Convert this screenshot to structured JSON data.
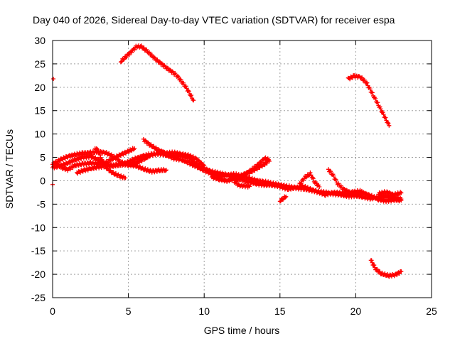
{
  "chart_data": {
    "type": "scatter",
    "title": "Day 040 of 2026, Sidereal Day-to-day VTEC variation (SDTVAR) for receiver espa",
    "xlabel": "GPS time / hours",
    "ylabel": "SDTVAR / TECUs",
    "xlim": [
      0,
      25
    ],
    "ylim": [
      -25,
      30
    ],
    "xticks": [
      0,
      5,
      10,
      15,
      20,
      25
    ],
    "yticks": [
      -25,
      -20,
      -15,
      -10,
      -5,
      0,
      5,
      10,
      15,
      20,
      25,
      30
    ],
    "grid": true,
    "marker": "+",
    "color": "#ff0000",
    "series": [
      {
        "name": "arc-high-1",
        "points": [
          [
            4.5,
            25.5
          ],
          [
            5.0,
            27.0
          ],
          [
            5.5,
            28.6
          ],
          [
            5.8,
            28.8
          ],
          [
            6.2,
            27.8
          ],
          [
            6.8,
            26.0
          ],
          [
            7.5,
            24.2
          ],
          [
            8.2,
            22.5
          ],
          [
            8.8,
            20.0
          ],
          [
            9.3,
            17.2
          ]
        ]
      },
      {
        "name": "arc-high-2",
        "points": [
          [
            19.5,
            21.8
          ],
          [
            19.9,
            22.4
          ],
          [
            20.3,
            22.2
          ],
          [
            20.7,
            21.0
          ],
          [
            21.2,
            18.0
          ],
          [
            21.7,
            15.0
          ],
          [
            22.2,
            11.8
          ]
        ]
      },
      {
        "name": "arc-low",
        "points": [
          [
            21.0,
            -17.0
          ],
          [
            21.3,
            -18.8
          ],
          [
            21.7,
            -19.9
          ],
          [
            22.2,
            -20.3
          ],
          [
            22.6,
            -20.1
          ],
          [
            23.0,
            -19.4
          ]
        ]
      },
      {
        "name": "arc-start",
        "points": [
          [
            0.05,
            21.8
          ],
          [
            0.0,
            -0.8
          ]
        ]
      },
      {
        "name": "track-a",
        "points": [
          [
            0.0,
            3.5
          ],
          [
            0.5,
            4.5
          ],
          [
            1.0,
            5.2
          ],
          [
            1.5,
            5.6
          ],
          [
            2.0,
            5.9
          ],
          [
            2.5,
            6.0
          ],
          [
            3.0,
            6.2
          ],
          [
            3.5,
            6.0
          ],
          [
            4.0,
            5.2
          ],
          [
            4.5,
            4.0
          ],
          [
            5.0,
            3.5
          ],
          [
            5.5,
            3.8
          ],
          [
            6.0,
            4.6
          ],
          [
            6.5,
            5.5
          ],
          [
            7.0,
            5.9
          ],
          [
            7.5,
            5.5
          ],
          [
            8.0,
            4.8
          ],
          [
            8.5,
            4.5
          ],
          [
            9.0,
            3.8
          ],
          [
            9.5,
            3.0
          ],
          [
            10.0,
            2.2
          ],
          [
            10.5,
            1.5
          ],
          [
            11.0,
            1.0
          ],
          [
            11.5,
            1.2
          ],
          [
            12.0,
            1.4
          ],
          [
            12.5,
            1.0
          ],
          [
            13.0,
            0.5
          ],
          [
            13.5,
            0.0
          ],
          [
            14.0,
            -0.2
          ],
          [
            14.5,
            -0.6
          ],
          [
            15.0,
            -0.9
          ],
          [
            15.5,
            -1.2
          ],
          [
            16.0,
            -1.5
          ],
          [
            16.5,
            -1.7
          ],
          [
            17.0,
            -2.0
          ],
          [
            17.5,
            -2.3
          ],
          [
            18.0,
            -2.5
          ],
          [
            18.5,
            -2.8
          ],
          [
            19.0,
            -3.0
          ],
          [
            19.5,
            -3.3
          ],
          [
            20.0,
            -3.2
          ],
          [
            20.5,
            -3.5
          ],
          [
            21.0,
            -3.8
          ],
          [
            21.5,
            -3.5
          ],
          [
            22.0,
            -3.3
          ],
          [
            22.5,
            -3.6
          ],
          [
            23.0,
            -3.9
          ]
        ]
      },
      {
        "name": "track-b",
        "points": [
          [
            0.0,
            2.8
          ],
          [
            0.5,
            3.2
          ],
          [
            1.0,
            3.8
          ],
          [
            1.5,
            4.5
          ],
          [
            2.0,
            5.0
          ],
          [
            2.5,
            5.2
          ],
          [
            3.0,
            4.5
          ],
          [
            3.5,
            3.5
          ],
          [
            4.0,
            3.2
          ],
          [
            4.5,
            3.5
          ],
          [
            5.0,
            4.0
          ],
          [
            5.5,
            4.8
          ],
          [
            6.0,
            5.3
          ],
          [
            6.5,
            5.7
          ],
          [
            7.0,
            5.8
          ],
          [
            7.5,
            5.6
          ],
          [
            8.0,
            5.2
          ],
          [
            8.5,
            5.5
          ],
          [
            9.0,
            4.8
          ],
          [
            9.5,
            3.6
          ],
          [
            10.0,
            2.6
          ],
          [
            10.5,
            2.0
          ],
          [
            11.0,
            1.6
          ],
          [
            11.5,
            1.3
          ],
          [
            12.0,
            0.8
          ],
          [
            12.5,
            0.2
          ],
          [
            13.0,
            -0.3
          ],
          [
            13.5,
            -0.7
          ],
          [
            14.0,
            -0.9
          ],
          [
            14.5,
            -0.9
          ],
          [
            15.0,
            -1.2
          ],
          [
            15.5,
            -1.8
          ],
          [
            16.0,
            -1.5
          ],
          [
            16.5,
            -1.2
          ],
          [
            17.0,
            -1.8
          ],
          [
            17.5,
            -2.4
          ],
          [
            18.0,
            -3.0
          ],
          [
            18.5,
            -2.5
          ],
          [
            19.0,
            -2.6
          ],
          [
            19.5,
            -2.8
          ],
          [
            20.0,
            -3.0
          ],
          [
            20.5,
            -2.6
          ],
          [
            21.0,
            -3.2
          ],
          [
            21.5,
            -4.0
          ],
          [
            22.0,
            -4.3
          ],
          [
            22.5,
            -4.1
          ],
          [
            23.0,
            -4.2
          ]
        ]
      },
      {
        "name": "track-c",
        "points": [
          [
            0.2,
            3.8
          ],
          [
            0.6,
            2.8
          ],
          [
            1.0,
            2.4
          ],
          [
            1.5,
            3.3
          ],
          [
            2.0,
            3.6
          ],
          [
            2.5,
            3.8
          ],
          [
            3.0,
            3.6
          ],
          [
            3.5,
            3.9
          ],
          [
            4.0,
            4.8
          ],
          [
            4.5,
            5.6
          ],
          [
            5.0,
            6.3
          ],
          [
            5.4,
            6.9
          ]
        ]
      },
      {
        "name": "track-d",
        "points": [
          [
            1.6,
            1.7
          ],
          [
            2.0,
            2.2
          ],
          [
            2.5,
            2.6
          ],
          [
            3.0,
            2.9
          ],
          [
            3.5,
            3.2
          ],
          [
            4.0,
            3.3
          ],
          [
            4.5,
            3.5
          ],
          [
            5.0,
            3.4
          ],
          [
            5.5,
            3.2
          ],
          [
            6.0,
            2.5
          ],
          [
            6.5,
            2.0
          ],
          [
            7.0,
            2.2
          ],
          [
            7.5,
            2.3
          ]
        ]
      },
      {
        "name": "track-e",
        "points": [
          [
            2.8,
            7.0
          ],
          [
            3.0,
            6.5
          ],
          [
            3.3,
            4.0
          ],
          [
            3.6,
            2.6
          ],
          [
            4.0,
            1.6
          ],
          [
            4.4,
            1.0
          ],
          [
            4.8,
            0.6
          ]
        ]
      },
      {
        "name": "track-f",
        "points": [
          [
            6.0,
            8.8
          ],
          [
            6.5,
            7.5
          ],
          [
            7.0,
            6.5
          ],
          [
            7.5,
            5.9
          ],
          [
            8.0,
            6.0
          ],
          [
            8.5,
            5.7
          ],
          [
            9.0,
            5.4
          ],
          [
            9.5,
            4.6
          ],
          [
            10.0,
            3.2
          ]
        ]
      },
      {
        "name": "track-g",
        "points": [
          [
            10.5,
            0.8
          ],
          [
            11.0,
            0.3
          ],
          [
            11.5,
            0.0
          ],
          [
            12.0,
            0.4
          ],
          [
            12.5,
            1.2
          ],
          [
            13.0,
            2.0
          ],
          [
            13.5,
            3.3
          ],
          [
            14.0,
            4.8
          ],
          [
            14.3,
            4.4
          ],
          [
            14.0,
            3.6
          ],
          [
            13.5,
            2.7
          ],
          [
            13.0,
            1.8
          ],
          [
            12.5,
            0.8
          ],
          [
            12.0,
            -0.2
          ],
          [
            12.3,
            -1.0
          ],
          [
            13.0,
            -1.2
          ]
        ]
      },
      {
        "name": "track-h",
        "points": [
          [
            16.3,
            -0.8
          ],
          [
            16.6,
            0.6
          ],
          [
            17.0,
            1.5
          ],
          [
            17.3,
            -0.3
          ],
          [
            17.6,
            -1.3
          ]
        ]
      },
      {
        "name": "track-i",
        "points": [
          [
            18.2,
            2.4
          ],
          [
            18.5,
            1.2
          ],
          [
            18.8,
            -0.6
          ],
          [
            19.2,
            -1.8
          ],
          [
            19.6,
            -2.5
          ],
          [
            20.0,
            -2.3
          ],
          [
            20.4,
            -2.2
          ]
        ]
      },
      {
        "name": "track-j",
        "points": [
          [
            21.5,
            -2.8
          ],
          [
            22.0,
            -2.4
          ],
          [
            22.5,
            -3.0
          ],
          [
            23.0,
            -2.6
          ]
        ]
      },
      {
        "name": "track-k",
        "points": [
          [
            15.0,
            -4.3
          ],
          [
            15.2,
            -3.8
          ],
          [
            15.4,
            -3.4
          ]
        ]
      }
    ]
  }
}
